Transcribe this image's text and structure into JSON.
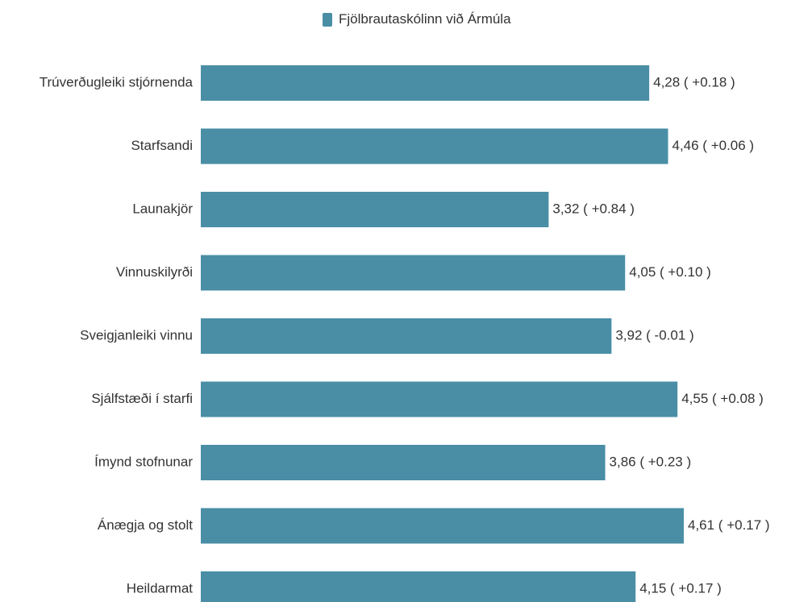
{
  "colors": {
    "bar": "#4a8ea6",
    "text": "#333333"
  },
  "chart_data": {
    "type": "bar",
    "orientation": "horizontal",
    "legend_position": "top-center",
    "grid": false,
    "categories": [
      "Trúverðugleiki stjórnenda",
      "Starfsandi",
      "Launakjör",
      "Vinnuskilyrði",
      "Sveigjanleiki vinnu",
      "Sjálfstæði í starfi",
      "Ímynd stofnunar",
      "Ánægja og stolt",
      "Heildarmat"
    ],
    "series": [
      {
        "name": "Fjölbrautaskólinn við Ármúla",
        "values": [
          4.28,
          4.46,
          3.32,
          4.05,
          3.92,
          4.55,
          3.86,
          4.61,
          4.15
        ]
      }
    ],
    "data_labels": [
      "4,28 ( +0.18 )",
      "4,46 ( +0.06 )",
      "3,32 ( +0.84 )",
      "4,05 ( +0.10 )",
      "3,92 ( -0.01 )",
      "4,55 ( +0.08 )",
      "3,86 ( +0.23 )",
      "4,61 ( +0.17 )",
      "4,15 ( +0.17 )"
    ],
    "xlim": [
      0,
      4.61
    ]
  }
}
